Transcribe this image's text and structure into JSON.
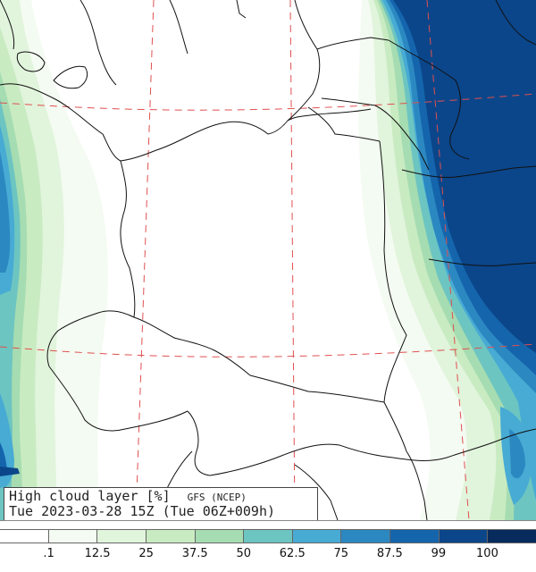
{
  "title": {
    "variable": "High cloud layer",
    "unit": "[%]",
    "source": "GFS (NCEP)",
    "valid_time": "Tue 2023-03-28 15Z (Tue 06Z+009h)"
  },
  "legend": {
    "colors": [
      "#ffffff",
      "#f4fbf2",
      "#e1f4dc",
      "#c9ebc2",
      "#a6dcb1",
      "#6dc5c1",
      "#47abd4",
      "#2c88c1",
      "#1565ad",
      "#0b468a",
      "#062b5c"
    ],
    "labels": [
      ".1",
      "12.5",
      "25",
      "37.5",
      "50",
      "62.5",
      "75",
      "87.5",
      "99",
      "100"
    ]
  }
}
